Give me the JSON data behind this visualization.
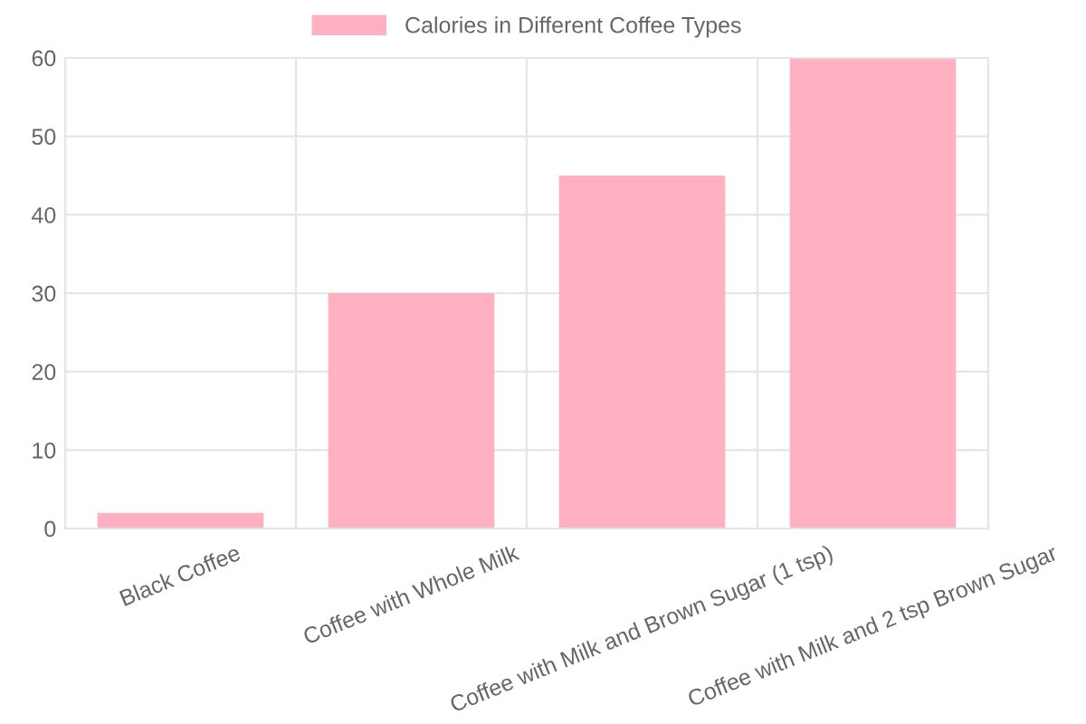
{
  "chart_data": {
    "type": "bar",
    "categories": [
      "Black Coffee",
      "Coffee with Whole Milk",
      "Coffee with Milk and Brown Sugar (1 tsp)",
      "Coffee with Milk and 2 tsp Brown Sugar"
    ],
    "series": [
      {
        "name": "Calories in Different Coffee Types",
        "color": "#ffb1c1",
        "values": [
          2,
          30,
          45,
          60
        ]
      }
    ],
    "ylim": [
      0,
      60
    ],
    "yticks": [
      0,
      10,
      20,
      30,
      40,
      50,
      60
    ],
    "grid": true,
    "legend": "top"
  }
}
